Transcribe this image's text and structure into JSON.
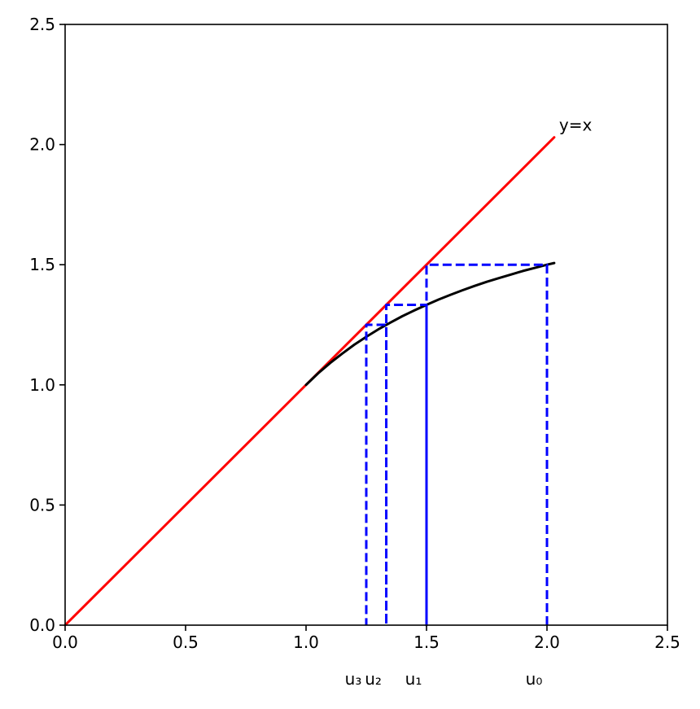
{
  "chart_data": {
    "type": "line",
    "title": "",
    "xlabel": "",
    "ylabel": "",
    "xlim": [
      0.0,
      2.5
    ],
    "ylim": [
      0.0,
      2.5
    ],
    "grid": false,
    "x_ticks": [
      "0.0",
      "0.5",
      "1.0",
      "1.5",
      "2.0",
      "2.5"
    ],
    "y_ticks": [
      "0.0",
      "0.5",
      "1.0",
      "1.5",
      "2.0",
      "2.5"
    ],
    "series": [
      {
        "color": "#ff0000",
        "style": "solid",
        "points": [
          [
            0.0,
            0.0
          ],
          [
            2.03,
            2.03
          ]
        ]
      },
      {
        "color": "#000000",
        "style": "solid",
        "points": [
          [
            1.0,
            1.0
          ],
          [
            1.05,
            1.048
          ],
          [
            1.1,
            1.091
          ],
          [
            1.15,
            1.13
          ],
          [
            1.2,
            1.167
          ],
          [
            1.25,
            1.2
          ],
          [
            1.3,
            1.231
          ],
          [
            1.35,
            1.259
          ],
          [
            1.4,
            1.286
          ],
          [
            1.45,
            1.31
          ],
          [
            1.5,
            1.333
          ],
          [
            1.55,
            1.355
          ],
          [
            1.6,
            1.375
          ],
          [
            1.65,
            1.394
          ],
          [
            1.7,
            1.412
          ],
          [
            1.75,
            1.429
          ],
          [
            1.8,
            1.444
          ],
          [
            1.85,
            1.459
          ],
          [
            1.9,
            1.474
          ],
          [
            1.95,
            1.487
          ],
          [
            2.0,
            1.5
          ],
          [
            2.03,
            1.507
          ]
        ]
      },
      {
        "color": "#0000ff",
        "style": "dashed",
        "points": [
          [
            2.0,
            0.0
          ],
          [
            2.0,
            1.5
          ],
          [
            1.5,
            1.5
          ],
          [
            1.5,
            0.0
          ],
          [
            1.5,
            1.333
          ],
          [
            1.333,
            1.333
          ],
          [
            1.333,
            0.0
          ],
          [
            1.333,
            1.25
          ],
          [
            1.25,
            1.25
          ],
          [
            1.25,
            0.0
          ]
        ]
      }
    ],
    "annotations": [
      {
        "text": "y=x",
        "x": 2.03,
        "y": 2.03
      }
    ],
    "sequence_labels": [
      {
        "text": "u₃",
        "x": 1.25
      },
      {
        "text": "u₂",
        "x": 1.333
      },
      {
        "text": "u₁",
        "x": 1.5
      },
      {
        "text": "u₀",
        "x": 2.0
      }
    ]
  }
}
